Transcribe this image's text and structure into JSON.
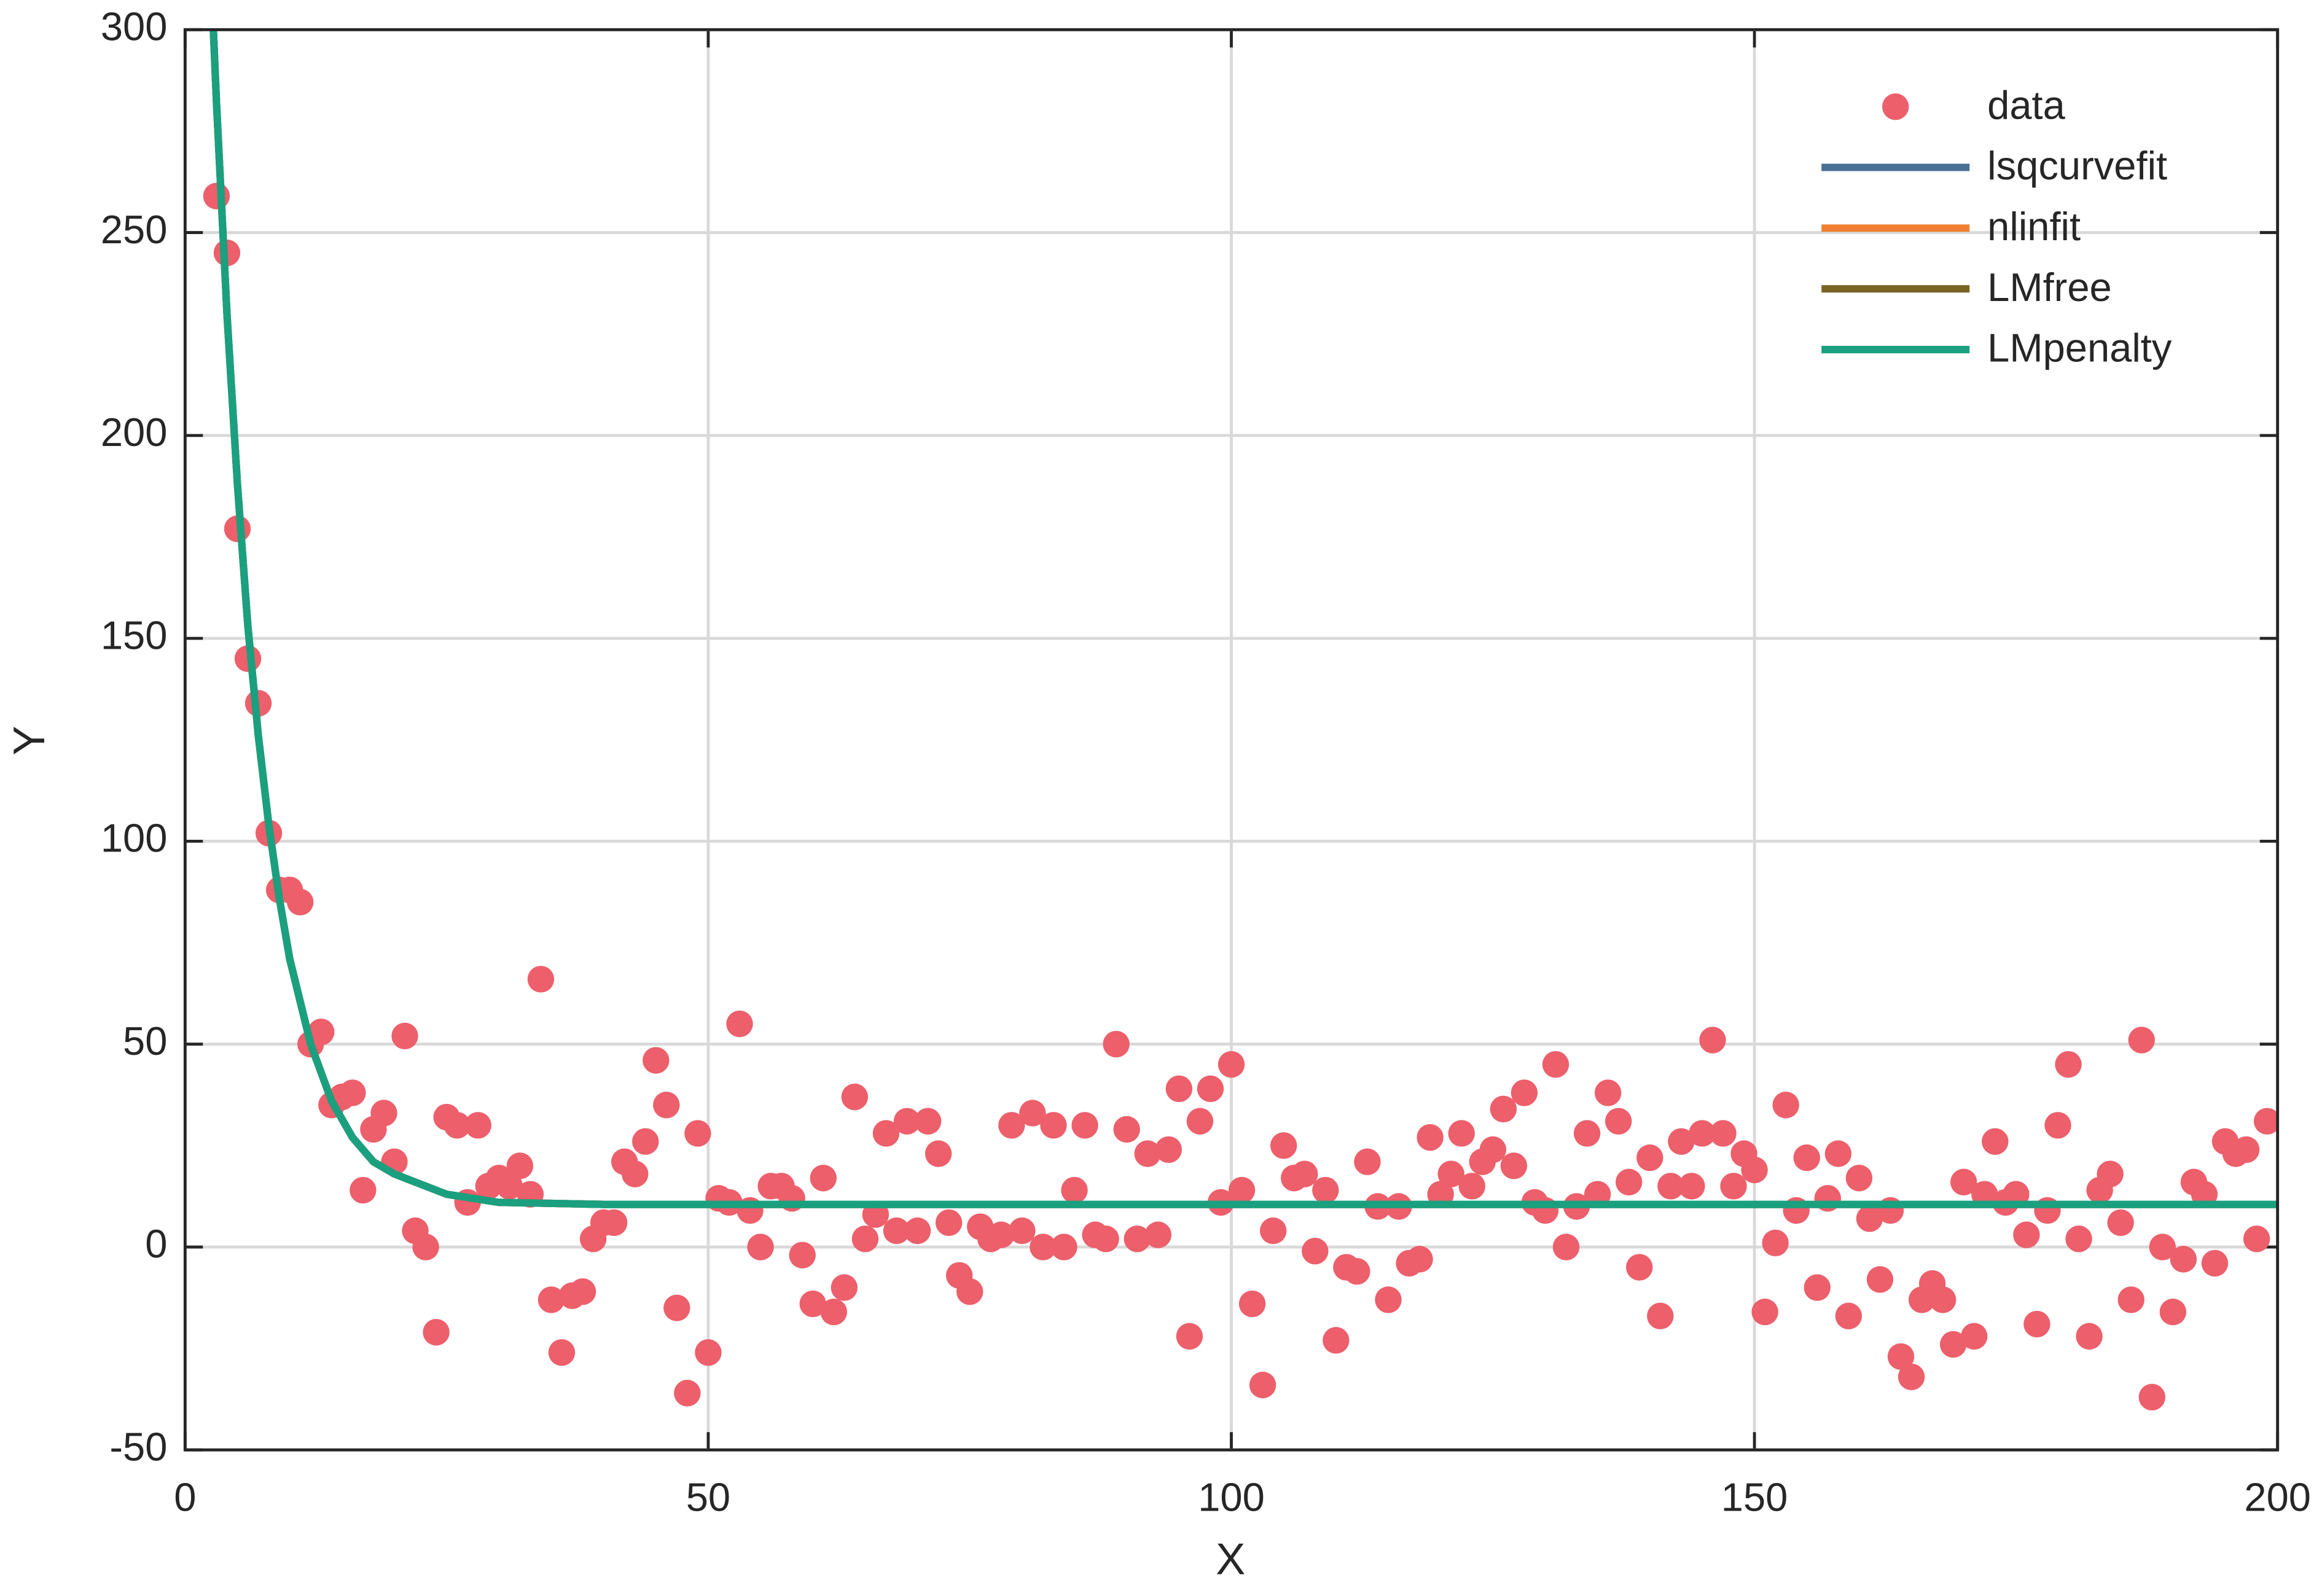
{
  "chart_data": {
    "type": "scatter",
    "xlabel": "X",
    "ylabel": "Y",
    "xlim": [
      0,
      200
    ],
    "ylim": [
      -50,
      300
    ],
    "xticks": [
      0,
      50,
      100,
      150,
      200
    ],
    "yticks": [
      -50,
      0,
      50,
      100,
      150,
      200,
      250,
      300
    ],
    "grid": true,
    "legend": "upper right",
    "series": [
      {
        "name": "data",
        "type": "scatter",
        "color": "#ec5f6b",
        "x": [
          3,
          4,
          5,
          6,
          7,
          8,
          9,
          10,
          11,
          12,
          13,
          14,
          15,
          16,
          17,
          18,
          19,
          20,
          21,
          22,
          23,
          24,
          25,
          26,
          27,
          28,
          29,
          30,
          31,
          32,
          33,
          34,
          35,
          36,
          37,
          38,
          39,
          40,
          41,
          42,
          43,
          44,
          45,
          46,
          47,
          48,
          49,
          50,
          51,
          52,
          53,
          54,
          55,
          56,
          57,
          58,
          59,
          60,
          61,
          62,
          63,
          64,
          65,
          66,
          67,
          68,
          69,
          70,
          71,
          72,
          73,
          74,
          75,
          76,
          77,
          78,
          79,
          80,
          81,
          82,
          83,
          84,
          85,
          86,
          87,
          88,
          89,
          90,
          91,
          92,
          93,
          94,
          95,
          96,
          97,
          98,
          99,
          100,
          101,
          102,
          103,
          104,
          105,
          106,
          107,
          108,
          109,
          110,
          111,
          112,
          113,
          114,
          115,
          116,
          117,
          118,
          119,
          120,
          121,
          122,
          123,
          124,
          125,
          126,
          127,
          128,
          129,
          130,
          131,
          132,
          133,
          134,
          135,
          136,
          137,
          138,
          139,
          140,
          141,
          142,
          143,
          144,
          145,
          146,
          147,
          148,
          149,
          150,
          151,
          152,
          153,
          154,
          155,
          156,
          157,
          158,
          159,
          160,
          161,
          162,
          163,
          164,
          165,
          166,
          167,
          168,
          169,
          170,
          171,
          172,
          173,
          174,
          175,
          176,
          177,
          178,
          179,
          180,
          181,
          182,
          183,
          184,
          185,
          186,
          187,
          188,
          189,
          190,
          191,
          192,
          193,
          194,
          195,
          196,
          197,
          198,
          199
        ],
        "values": [
          259,
          245,
          177,
          145,
          134,
          102,
          88,
          88,
          85,
          50,
          53,
          35,
          37,
          38,
          14,
          29,
          33,
          21,
          52,
          4,
          0,
          -21,
          32,
          30,
          11,
          30,
          15,
          17,
          15,
          20,
          13,
          66,
          -13,
          -26,
          -12,
          -11,
          2,
          6,
          6,
          21,
          18,
          26,
          46,
          35,
          -15,
          -36,
          28,
          -26,
          12,
          11,
          55,
          9,
          0,
          15,
          15,
          12,
          -2,
          -14,
          17,
          -16,
          -10,
          37,
          2,
          8,
          28,
          4,
          31,
          4,
          31,
          23,
          6,
          -7,
          -11,
          5,
          2,
          3,
          30,
          4,
          33,
          0,
          30,
          0,
          14,
          30,
          3,
          2,
          50,
          29,
          2,
          23,
          3,
          24,
          39,
          -22,
          31,
          39,
          11,
          45,
          14,
          -14,
          -34,
          4,
          25,
          17,
          18,
          -1,
          14,
          -23,
          -5,
          -6,
          21,
          10,
          -13,
          10,
          -4,
          -3,
          27,
          13,
          18,
          28,
          15,
          21,
          24,
          34,
          20,
          38,
          11,
          9,
          45,
          0,
          10,
          28,
          13,
          38,
          31,
          16,
          -5,
          22,
          -17,
          15,
          26,
          15,
          28,
          51,
          28,
          15,
          23,
          19,
          -16,
          1,
          35,
          9,
          22,
          -10,
          12,
          23,
          -17,
          17,
          7,
          -8,
          9,
          -27,
          -32,
          -13,
          -9,
          -13,
          -24,
          16,
          -22,
          13,
          26,
          11,
          13,
          3,
          -19,
          9,
          30,
          45,
          2,
          -22,
          14,
          18,
          6,
          -13,
          51,
          -37,
          0,
          -16,
          -3,
          16,
          13,
          -4,
          26,
          23,
          24,
          2,
          31
        ]
      },
      {
        "name": "lsqcurvefit",
        "type": "line",
        "color": "#4a6f96",
        "x": [
          2.7,
          3,
          4,
          5,
          6,
          7,
          8,
          9,
          10,
          12,
          14,
          16,
          18,
          20,
          25,
          30,
          40,
          100,
          200
        ],
        "values": [
          300,
          282,
          230,
          188,
          153,
          126,
          104,
          86,
          71,
          50,
          36,
          27,
          21,
          18,
          13,
          11,
          10.5,
          10.5,
          10.5
        ]
      },
      {
        "name": "nlinfit",
        "type": "line",
        "color": "#f07f33",
        "x": [
          2.7,
          3,
          4,
          5,
          6,
          7,
          8,
          9,
          10,
          12,
          14,
          16,
          18,
          20,
          25,
          30,
          40,
          100,
          200
        ],
        "values": [
          300,
          282,
          230,
          188,
          153,
          126,
          104,
          86,
          71,
          50,
          36,
          27,
          21,
          18,
          13,
          11,
          10.5,
          10.5,
          10.5
        ]
      },
      {
        "name": "LMfree",
        "type": "line",
        "color": "#7a6425",
        "x": [
          2.7,
          3,
          4,
          5,
          6,
          7,
          8,
          9,
          10,
          12,
          14,
          16,
          18,
          20,
          25,
          30,
          40,
          100,
          200
        ],
        "values": [
          300,
          282,
          230,
          188,
          153,
          126,
          104,
          86,
          71,
          50,
          36,
          27,
          21,
          18,
          13,
          11,
          10.5,
          10.5,
          10.5
        ]
      },
      {
        "name": "LMpenalty",
        "type": "line",
        "color": "#1aa07f",
        "x": [
          2.7,
          3,
          4,
          5,
          6,
          7,
          8,
          9,
          10,
          12,
          14,
          16,
          18,
          20,
          25,
          30,
          40,
          100,
          200
        ],
        "values": [
          300,
          282,
          230,
          188,
          153,
          126,
          104,
          86,
          71,
          50,
          36,
          27,
          21,
          18,
          13,
          11,
          10.5,
          10.5,
          10.5
        ]
      }
    ]
  }
}
